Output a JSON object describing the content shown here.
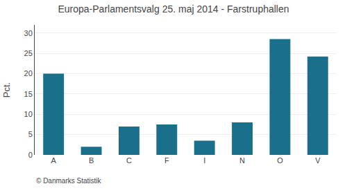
{
  "chart_data": {
    "type": "bar",
    "title": "Europa-Parlamentsvalg 25. maj 2014 - Farstruphallen",
    "ylabel": "Pct.",
    "annotations": [
      "© Danmarks Statistik"
    ],
    "categories": [
      "A",
      "B",
      "C",
      "F",
      "I",
      "N",
      "O",
      "V"
    ],
    "values": [
      20.0,
      2.0,
      7.0,
      7.5,
      3.5,
      8.0,
      28.5,
      24.2
    ],
    "color": "#1a6f8a",
    "ylim": [
      0,
      32
    ],
    "yticks": [
      0,
      5,
      10,
      15,
      20,
      25,
      30
    ],
    "grid": true
  }
}
